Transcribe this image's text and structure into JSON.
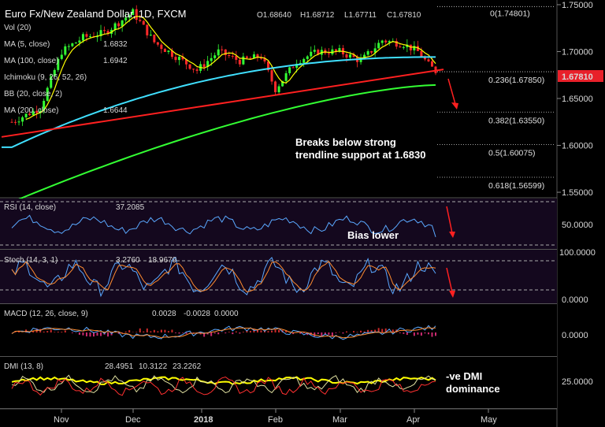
{
  "chart_data": {
    "type": "candlestick",
    "title": "Euro Fx/New Zealand Dollar, 1D, FXCM",
    "ohlc": {
      "open": "O1.68640",
      "high": "H1.68712",
      "low": "L1.67711",
      "close": "C1.67810"
    },
    "last_price": "1.67810",
    "x_ticks": [
      "Nov",
      "Dec",
      "2018",
      "Feb",
      "Mar",
      "Apr",
      "May"
    ],
    "y_ticks": [
      "1.75000",
      "1.70000",
      "1.65000",
      "1.60000",
      "1.55000"
    ],
    "ylim": [
      1.545,
      1.755
    ],
    "fibonacci": [
      {
        "label": "0(1.74801)",
        "value": 1.74801
      },
      {
        "label": "0.236(1.67850)",
        "value": 1.6785
      },
      {
        "label": "0.382(1.63550)",
        "value": 1.6355
      },
      {
        "label": "0.5(1.60075)",
        "value": 1.60075
      },
      {
        "label": "0.618(1.56599)",
        "value": 1.56599
      }
    ],
    "indicators": [
      {
        "name": "Vol (20)"
      },
      {
        "name": "MA (5, close)",
        "value": "1.6832",
        "color": "#ffff00"
      },
      {
        "name": "MA (100, close)",
        "value": "1.6942",
        "color": "#40e0ff"
      },
      {
        "name": "Ichimoku (9, 26, 52, 26)"
      },
      {
        "name": "BB (20, close, 2)"
      },
      {
        "name": "MA (200, close)",
        "value": "1.6644",
        "color": "#33ff33"
      }
    ],
    "trendline": {
      "color": "#ff2020",
      "from": 1.609,
      "to": 1.681
    },
    "annotations": [
      {
        "text": "Breaks below strong"
      },
      {
        "text": "trendline support at 1.6830"
      }
    ],
    "panes": {
      "rsi": {
        "label": "RSI (14, close)",
        "value": "37.2085",
        "tick": "50.0000",
        "note": "Bias lower"
      },
      "stoch": {
        "label": "Stoch (14, 3, 1)",
        "k": "3.2760",
        "d": "18.9679",
        "ticks": [
          "100.0000",
          "0.0000"
        ]
      },
      "macd": {
        "label": "MACD (12, 26, close, 9)",
        "v1": "0.0028",
        "v2": "-0.0028",
        "v3": "0.0000",
        "tick": "0.0000"
      },
      "dmi": {
        "label": "DMI (13, 8)",
        "v1": "28.4951",
        "v2": "10.3122",
        "v3": "23.2262",
        "tick": "25.0000",
        "note_line1": "-ve DMI",
        "note_line2": "dominance"
      }
    },
    "colors": {
      "bull": "#33ff33",
      "bear": "#ff2a2a",
      "ma5": "#ffff00",
      "ma100": "#40e0ff",
      "ma200": "#33ff33",
      "rsi": "#5aa8ff",
      "stoch_k": "#5aa8ff",
      "stoch_d": "#ff8c30",
      "price_tag": "#e8202a",
      "pane_bg": "#14081e"
    }
  }
}
